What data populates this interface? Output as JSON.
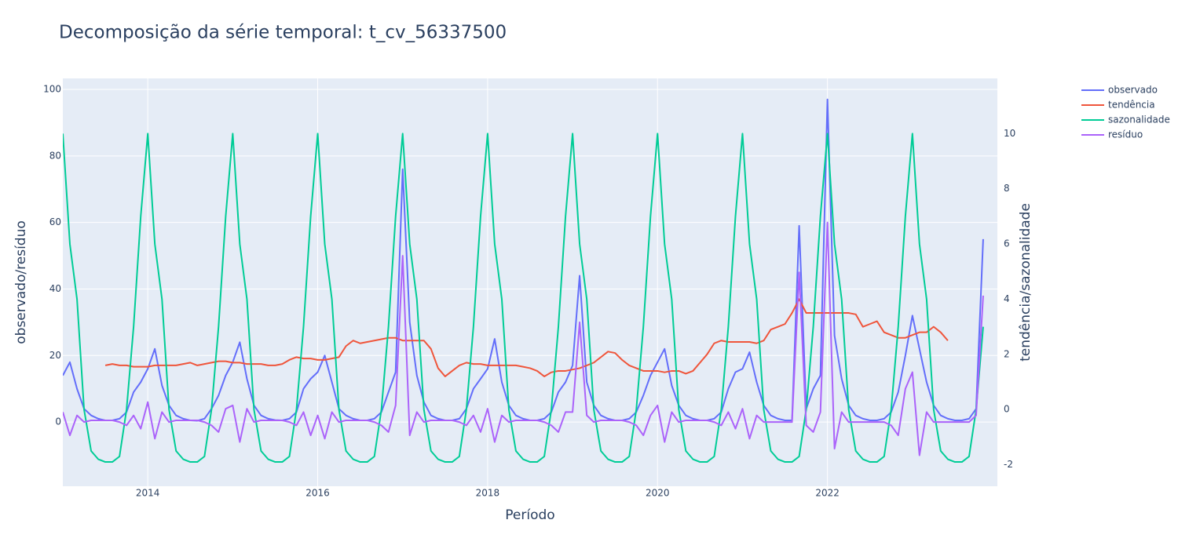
{
  "chart_data": {
    "type": "line",
    "title": "Decomposição da série temporal: t_cv_56337500",
    "xlabel": "Período",
    "ylabel": "observado/resíduo",
    "y2label": "tendência/sazonalidade",
    "xlim": [
      2013.0,
      2024.0
    ],
    "xticks": [
      2014,
      2016,
      2018,
      2020,
      2022
    ],
    "ylim": [
      -19.3,
      103.3
    ],
    "yticks": [
      0,
      20,
      40,
      60,
      80,
      100
    ],
    "y2lim": [
      -2.78,
      12.0
    ],
    "y2ticks": [
      -2,
      0,
      2,
      4,
      6,
      8,
      10
    ],
    "grid": true,
    "legend": "top-right",
    "x": [
      2013.0,
      2013.083,
      2013.167,
      2013.25,
      2013.333,
      2013.417,
      2013.5,
      2013.583,
      2013.667,
      2013.75,
      2013.833,
      2013.917,
      2014.0,
      2014.083,
      2014.167,
      2014.25,
      2014.333,
      2014.417,
      2014.5,
      2014.583,
      2014.667,
      2014.75,
      2014.833,
      2014.917,
      2015.0,
      2015.083,
      2015.167,
      2015.25,
      2015.333,
      2015.417,
      2015.5,
      2015.583,
      2015.667,
      2015.75,
      2015.833,
      2015.917,
      2016.0,
      2016.083,
      2016.167,
      2016.25,
      2016.333,
      2016.417,
      2016.5,
      2016.583,
      2016.667,
      2016.75,
      2016.833,
      2016.917,
      2017.0,
      2017.083,
      2017.167,
      2017.25,
      2017.333,
      2017.417,
      2017.5,
      2017.583,
      2017.667,
      2017.75,
      2017.833,
      2017.917,
      2018.0,
      2018.083,
      2018.167,
      2018.25,
      2018.333,
      2018.417,
      2018.5,
      2018.583,
      2018.667,
      2018.75,
      2018.833,
      2018.917,
      2019.0,
      2019.083,
      2019.167,
      2019.25,
      2019.333,
      2019.417,
      2019.5,
      2019.583,
      2019.667,
      2019.75,
      2019.833,
      2019.917,
      2020.0,
      2020.083,
      2020.167,
      2020.25,
      2020.333,
      2020.417,
      2020.5,
      2020.583,
      2020.667,
      2020.75,
      2020.833,
      2020.917,
      2021.0,
      2021.083,
      2021.167,
      2021.25,
      2021.333,
      2021.417,
      2021.5,
      2021.583,
      2021.667,
      2021.75,
      2021.833,
      2021.917,
      2022.0,
      2022.083,
      2022.167,
      2022.25,
      2022.333,
      2022.417,
      2022.5,
      2022.583,
      2022.667,
      2022.75,
      2022.833,
      2022.917,
      2023.0,
      2023.083,
      2023.167,
      2023.25,
      2023.333,
      2023.417,
      2023.5,
      2023.583,
      2023.667,
      2023.75,
      2023.833
    ],
    "series": [
      {
        "name": "observado",
        "color": "#636efa",
        "axis": "y",
        "values": [
          14,
          18,
          10,
          4,
          2,
          1,
          0.5,
          0.5,
          1,
          3,
          9,
          12,
          16,
          22,
          11,
          5,
          2,
          1,
          0.5,
          0.4,
          1,
          4,
          8,
          14,
          18,
          24,
          13,
          5,
          2,
          1,
          0.6,
          0.5,
          1,
          3,
          10,
          13,
          15,
          20,
          12,
          4,
          2,
          1,
          0.5,
          0.5,
          1,
          3,
          9,
          15,
          76,
          30,
          14,
          6,
          2,
          1,
          0.5,
          0.5,
          1,
          4,
          10,
          13,
          16,
          25,
          12,
          5,
          2,
          1,
          0.5,
          0.5,
          1,
          3,
          9,
          12,
          17,
          44,
          12,
          5,
          2,
          1,
          0.5,
          0.5,
          1,
          3,
          8,
          14,
          18,
          22,
          11,
          5,
          2,
          1,
          0.5,
          0.5,
          1,
          3,
          10,
          15,
          16,
          21,
          12,
          5,
          2,
          1,
          0.5,
          0.5,
          59,
          4,
          10,
          14,
          97,
          26,
          13,
          5,
          2,
          1,
          0.5,
          0.5,
          1,
          3,
          9,
          20,
          32,
          22,
          12,
          5,
          2,
          1,
          0.5,
          0.5,
          1,
          4,
          55
        ]
      },
      {
        "name": "tendência",
        "color": "#ef553b",
        "axis": "y2",
        "values": [
          null,
          null,
          null,
          null,
          null,
          null,
          1.6,
          1.65,
          1.6,
          1.6,
          1.55,
          1.55,
          1.55,
          1.6,
          1.6,
          1.6,
          1.6,
          1.65,
          1.7,
          1.6,
          1.65,
          1.7,
          1.75,
          1.75,
          1.7,
          1.7,
          1.65,
          1.65,
          1.65,
          1.6,
          1.6,
          1.65,
          1.8,
          1.9,
          1.85,
          1.85,
          1.8,
          1.8,
          1.85,
          1.9,
          2.3,
          2.5,
          2.4,
          2.45,
          2.5,
          2.55,
          2.6,
          2.6,
          2.5,
          2.5,
          2.5,
          2.5,
          2.2,
          1.5,
          1.2,
          1.4,
          1.6,
          1.7,
          1.65,
          1.65,
          1.6,
          1.6,
          1.6,
          1.6,
          1.6,
          1.55,
          1.5,
          1.4,
          1.2,
          1.35,
          1.4,
          1.4,
          1.45,
          1.5,
          1.6,
          1.7,
          1.9,
          2.1,
          2.05,
          1.8,
          1.6,
          1.5,
          1.4,
          1.4,
          1.4,
          1.35,
          1.4,
          1.4,
          1.3,
          1.4,
          1.7,
          2.0,
          2.4,
          2.5,
          2.45,
          2.45,
          2.45,
          2.45,
          2.4,
          2.5,
          2.9,
          3.0,
          3.1,
          3.5,
          4.0,
          3.5,
          3.5,
          3.5,
          3.5,
          3.5,
          3.5,
          3.5,
          3.45,
          3.0,
          3.1,
          3.2,
          2.8,
          2.7,
          2.6,
          2.6,
          2.7,
          2.8,
          2.8,
          3.0,
          2.8,
          2.5,
          null,
          null,
          null,
          null,
          null
        ]
      },
      {
        "name": "sazonalidade",
        "color": "#00cc96",
        "axis": "y2",
        "values": [
          10,
          6,
          4,
          0,
          -1.5,
          -1.8,
          -1.9,
          -1.9,
          -1.7,
          0,
          3,
          7,
          10,
          6,
          4,
          0,
          -1.5,
          -1.8,
          -1.9,
          -1.9,
          -1.7,
          0,
          3,
          7,
          10,
          6,
          4,
          0,
          -1.5,
          -1.8,
          -1.9,
          -1.9,
          -1.7,
          0,
          3,
          7,
          10,
          6,
          4,
          0,
          -1.5,
          -1.8,
          -1.9,
          -1.9,
          -1.7,
          0,
          3,
          7,
          10,
          6,
          4,
          0,
          -1.5,
          -1.8,
          -1.9,
          -1.9,
          -1.7,
          0,
          3,
          7,
          10,
          6,
          4,
          0,
          -1.5,
          -1.8,
          -1.9,
          -1.9,
          -1.7,
          0,
          3,
          7,
          10,
          6,
          4,
          0,
          -1.5,
          -1.8,
          -1.9,
          -1.9,
          -1.7,
          0,
          3,
          7,
          10,
          6,
          4,
          0,
          -1.5,
          -1.8,
          -1.9,
          -1.9,
          -1.7,
          0,
          3,
          7,
          10,
          6,
          4,
          0,
          -1.5,
          -1.8,
          -1.9,
          -1.9,
          -1.7,
          0,
          3,
          7,
          10,
          6,
          4,
          0,
          -1.5,
          -1.8,
          -1.9,
          -1.9,
          -1.7,
          0,
          3,
          7,
          10,
          6,
          4,
          0,
          -1.5,
          -1.8,
          -1.9,
          -1.9,
          -1.7,
          0,
          3
        ]
      },
      {
        "name": "resíduo",
        "color": "#ab63fa",
        "axis": "y",
        "values": [
          3,
          -4,
          2,
          0,
          0.5,
          0.5,
          0.5,
          0.5,
          0,
          -1,
          2,
          -2,
          6,
          -5,
          3,
          0,
          0.5,
          0.5,
          0.5,
          0.5,
          0,
          -1,
          -3,
          4,
          5,
          -6,
          4,
          0,
          0.5,
          0.5,
          0.5,
          0.5,
          0,
          -1,
          3,
          -4,
          2,
          -5,
          3,
          0,
          0.5,
          0.5,
          0.5,
          0.5,
          0,
          -1,
          -3,
          5,
          50,
          -4,
          3,
          0,
          0.5,
          0.5,
          0.5,
          0.5,
          0,
          -1,
          2,
          -3,
          4,
          -6,
          2,
          0,
          0.5,
          0.5,
          0.5,
          0.5,
          0,
          -1,
          -3,
          3,
          3,
          30,
          2,
          0,
          0.5,
          0.5,
          0.5,
          0.5,
          0,
          -1,
          -4,
          2,
          5,
          -6,
          3,
          0,
          0.5,
          0.5,
          0.5,
          0.5,
          0,
          -1,
          3,
          -2,
          4,
          -5,
          2,
          0,
          0,
          0,
          0,
          0,
          45,
          -1,
          -3,
          3,
          60,
          -8,
          3,
          0,
          0,
          0,
          0,
          0,
          0,
          -1,
          -4,
          10,
          15,
          -10,
          3,
          0,
          0,
          0,
          0,
          0,
          0,
          2,
          38
        ]
      }
    ]
  }
}
